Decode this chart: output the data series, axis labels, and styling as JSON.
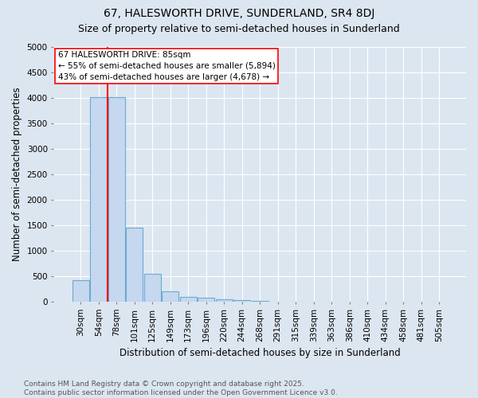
{
  "title": "67, HALESWORTH DRIVE, SUNDERLAND, SR4 8DJ",
  "subtitle": "Size of property relative to semi-detached houses in Sunderland",
  "xlabel": "Distribution of semi-detached houses by size in Sunderland",
  "ylabel": "Number of semi-detached properties",
  "categories": [
    "30sqm",
    "54sqm",
    "78sqm",
    "101sqm",
    "125sqm",
    "149sqm",
    "173sqm",
    "196sqm",
    "220sqm",
    "244sqm",
    "268sqm",
    "291sqm",
    "315sqm",
    "339sqm",
    "363sqm",
    "386sqm",
    "410sqm",
    "434sqm",
    "458sqm",
    "481sqm",
    "505sqm"
  ],
  "values": [
    420,
    4020,
    4020,
    1450,
    550,
    200,
    100,
    70,
    50,
    30,
    15,
    5,
    2,
    1,
    0,
    0,
    0,
    0,
    0,
    0,
    0
  ],
  "bar_color": "#c5d8ef",
  "bar_edge_color": "#6aaad4",
  "red_line_x": 1.5,
  "pct_smaller": 55,
  "count_smaller": 5894,
  "pct_larger": 43,
  "count_larger": 4678,
  "annotation_line1": "67 HALESWORTH DRIVE: 85sqm",
  "annotation_line2": "← 55% of semi-detached houses are smaller (5,894)",
  "annotation_line3": "43% of semi-detached houses are larger (4,678) →",
  "ylim": [
    0,
    5000
  ],
  "yticks": [
    0,
    500,
    1000,
    1500,
    2000,
    2500,
    3000,
    3500,
    4000,
    4500,
    5000
  ],
  "footnote1": "Contains HM Land Registry data © Crown copyright and database right 2025.",
  "footnote2": "Contains public sector information licensed under the Open Government Licence v3.0.",
  "bg_color": "#dce6f0",
  "plot_bg_color": "#dce6f0",
  "title_fontsize": 10,
  "subtitle_fontsize": 9,
  "axis_label_fontsize": 8.5,
  "tick_fontsize": 7.5,
  "annotation_fontsize": 7.5,
  "footnote_fontsize": 6.5
}
